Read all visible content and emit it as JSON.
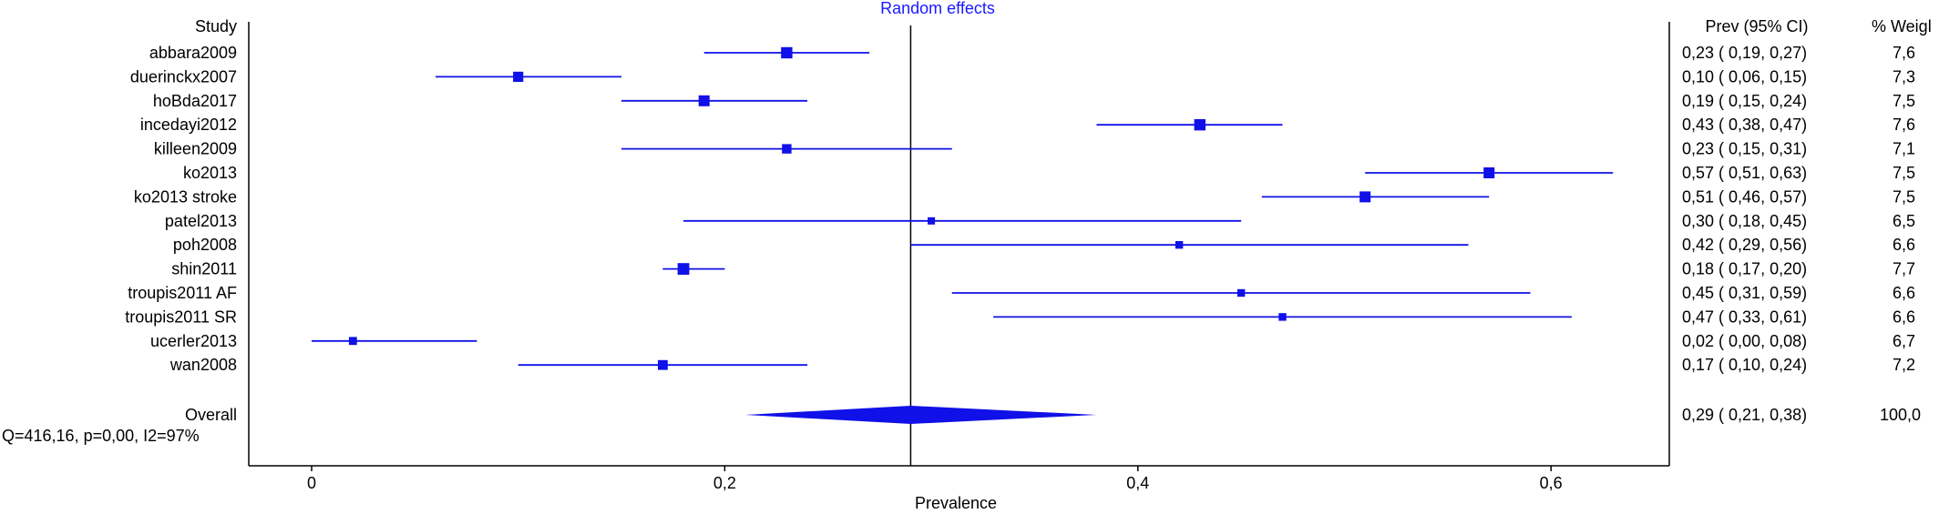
{
  "chart_data": {
    "type": "forest",
    "title": "Random effects",
    "xlabel": "Prevalence",
    "xlim": [
      -0.03,
      0.66
    ],
    "x_ticks": [
      {
        "value": 0,
        "label": "0"
      },
      {
        "value": 0.2,
        "label": "0,2"
      },
      {
        "value": 0.4,
        "label": "0,4"
      },
      {
        "value": 0.6,
        "label": "0,6"
      }
    ],
    "grid": false,
    "column_headers": {
      "study": "Study",
      "estimate": "Prev (95% CI)",
      "weight": "% Weigl"
    },
    "studies": [
      {
        "name": "abbara2009",
        "prev": 0.23,
        "lo": 0.19,
        "hi": 0.27,
        "ci_text": "0,23  ( 0,19,  0,27)",
        "weight": "7,6"
      },
      {
        "name": "duerinckx2007",
        "prev": 0.1,
        "lo": 0.06,
        "hi": 0.15,
        "ci_text": "0,10  ( 0,06,  0,15)",
        "weight": "7,3"
      },
      {
        "name": "hoBda2017",
        "prev": 0.19,
        "lo": 0.15,
        "hi": 0.24,
        "ci_text": "0,19  ( 0,15,  0,24)",
        "weight": "7,5"
      },
      {
        "name": "incedayi2012",
        "prev": 0.43,
        "lo": 0.38,
        "hi": 0.47,
        "ci_text": "0,43  ( 0,38,  0,47)",
        "weight": "7,6"
      },
      {
        "name": "killeen2009",
        "prev": 0.23,
        "lo": 0.15,
        "hi": 0.31,
        "ci_text": "0,23  ( 0,15,  0,31)",
        "weight": "7,1"
      },
      {
        "name": "ko2013",
        "prev": 0.57,
        "lo": 0.51,
        "hi": 0.63,
        "ci_text": "0,57  ( 0,51,  0,63)",
        "weight": "7,5"
      },
      {
        "name": "ko2013 stroke",
        "prev": 0.51,
        "lo": 0.46,
        "hi": 0.57,
        "ci_text": "0,51  ( 0,46,  0,57)",
        "weight": "7,5"
      },
      {
        "name": "patel2013",
        "prev": 0.3,
        "lo": 0.18,
        "hi": 0.45,
        "ci_text": "0,30  ( 0,18,  0,45)",
        "weight": "6,5"
      },
      {
        "name": "poh2008",
        "prev": 0.42,
        "lo": 0.29,
        "hi": 0.56,
        "ci_text": "0,42  ( 0,29,  0,56)",
        "weight": "6,6"
      },
      {
        "name": "shin2011",
        "prev": 0.18,
        "lo": 0.17,
        "hi": 0.2,
        "ci_text": "0,18  ( 0,17,  0,20)",
        "weight": "7,7"
      },
      {
        "name": "troupis2011 AF",
        "prev": 0.45,
        "lo": 0.31,
        "hi": 0.59,
        "ci_text": "0,45  ( 0,31,  0,59)",
        "weight": "6,6"
      },
      {
        "name": "troupis2011 SR",
        "prev": 0.47,
        "lo": 0.33,
        "hi": 0.61,
        "ci_text": "0,47  ( 0,33,  0,61)",
        "weight": "6,6"
      },
      {
        "name": "ucerler2013",
        "prev": 0.02,
        "lo": 0.0,
        "hi": 0.08,
        "ci_text": "0,02  ( 0,00,  0,08)",
        "weight": "6,7"
      },
      {
        "name": "wan2008",
        "prev": 0.17,
        "lo": 0.1,
        "hi": 0.24,
        "ci_text": "0,17  ( 0,10,  0,24)",
        "weight": "7,2"
      }
    ],
    "overall": {
      "name": "Overall",
      "prev": 0.29,
      "lo": 0.21,
      "hi": 0.38,
      "ci_text": "0,29  ( 0,21,  0,38)",
      "weight": "100,0"
    },
    "heterogeneity": "Q=416,16, p=0,00, I2=97%",
    "colors": {
      "marks": "#1010e8",
      "title": "#1a1aff",
      "axes": "#000000",
      "reference_line": "#000000"
    }
  }
}
